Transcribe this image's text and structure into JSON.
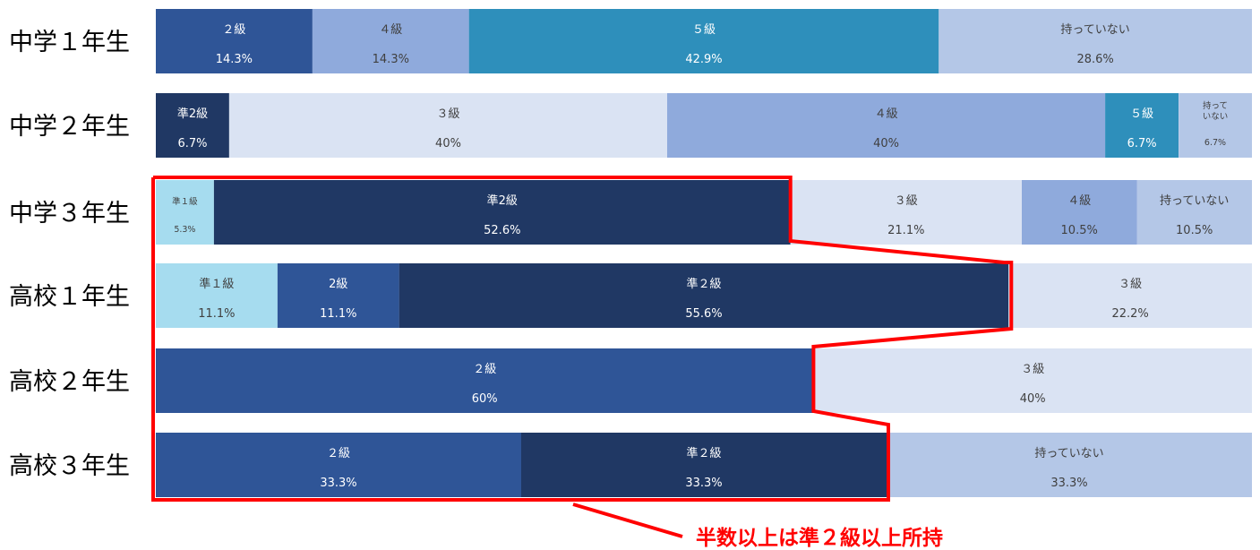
{
  "colors": {
    "jun1": "#a6dcef",
    "g2": "#2f5597",
    "jun2": "#203864",
    "g3": "#dae3f3",
    "g4": "#8faadc",
    "g5": "#2e8fbb",
    "none": "#b4c7e7",
    "highlight": "#ff0000"
  },
  "callout": {
    "text": "半数以上は準２級以上所持"
  },
  "chart_data": {
    "type": "bar",
    "orientation": "horizontal",
    "stacked": true,
    "percent": true,
    "xlim": [
      0,
      100
    ],
    "legend": "none",
    "grid": false,
    "categories": [
      "中学１年生",
      "中学２年生",
      "中学３年生",
      "高校１年生",
      "高校２年生",
      "高校３年生"
    ],
    "rows": [
      {
        "label": "中学１年生",
        "segments": [
          {
            "grade": "g2",
            "name": "２級",
            "value": 14.3,
            "value_label": "14.3%"
          },
          {
            "grade": "g4",
            "name": "４級",
            "value": 14.3,
            "value_label": "14.3%"
          },
          {
            "grade": "g5",
            "name": "５級",
            "value": 42.9,
            "value_label": "42.9%"
          },
          {
            "grade": "none",
            "name": "持っていない",
            "value": 28.6,
            "value_label": "28.6%"
          }
        ]
      },
      {
        "label": "中学２年生",
        "segments": [
          {
            "grade": "jun2",
            "name": "準2級",
            "value": 6.7,
            "value_label": "6.7%"
          },
          {
            "grade": "g3",
            "name": "３級",
            "value": 40,
            "value_label": "40%"
          },
          {
            "grade": "g4",
            "name": "４級",
            "value": 40,
            "value_label": "40%"
          },
          {
            "grade": "g5",
            "name": "５級",
            "value": 6.7,
            "value_label": "6.7%"
          },
          {
            "grade": "none",
            "name": "持って\nいない",
            "value": 6.7,
            "value_label": "6.7%",
            "small": true
          }
        ]
      },
      {
        "label": "中学３年生",
        "segments": [
          {
            "grade": "jun1",
            "name": "準１級",
            "value": 5.3,
            "value_label": "5.3%",
            "small": true
          },
          {
            "grade": "jun2",
            "name": "準2級",
            "value": 52.6,
            "value_label": "52.6%"
          },
          {
            "grade": "g3",
            "name": "３級",
            "value": 21.1,
            "value_label": "21.1%"
          },
          {
            "grade": "g4",
            "name": "４級",
            "value": 10.5,
            "value_label": "10.5%"
          },
          {
            "grade": "none",
            "name": "持っていない",
            "value": 10.5,
            "value_label": "10.5%"
          }
        ]
      },
      {
        "label": "高校１年生",
        "segments": [
          {
            "grade": "jun1",
            "name": "準１級",
            "value": 11.1,
            "value_label": "11.1%"
          },
          {
            "grade": "g2",
            "name": "2級",
            "value": 11.1,
            "value_label": "11.1%"
          },
          {
            "grade": "jun2",
            "name": "準２級",
            "value": 55.6,
            "value_label": "55.6%"
          },
          {
            "grade": "g3",
            "name": "３級",
            "value": 22.2,
            "value_label": "22.2%"
          }
        ]
      },
      {
        "label": "高校２年生",
        "segments": [
          {
            "grade": "g2",
            "name": "２級",
            "value": 60,
            "value_label": "60%"
          },
          {
            "grade": "g3",
            "name": "３級",
            "value": 40,
            "value_label": "40%"
          }
        ]
      },
      {
        "label": "高校３年生",
        "segments": [
          {
            "grade": "g2",
            "name": "２級",
            "value": 33.3,
            "value_label": "33.3%"
          },
          {
            "grade": "jun2",
            "name": "準２級",
            "value": 33.3,
            "value_label": "33.3%"
          },
          {
            "grade": "none",
            "name": "持っていない",
            "value": 33.3,
            "value_label": "33.3%"
          }
        ]
      }
    ]
  }
}
